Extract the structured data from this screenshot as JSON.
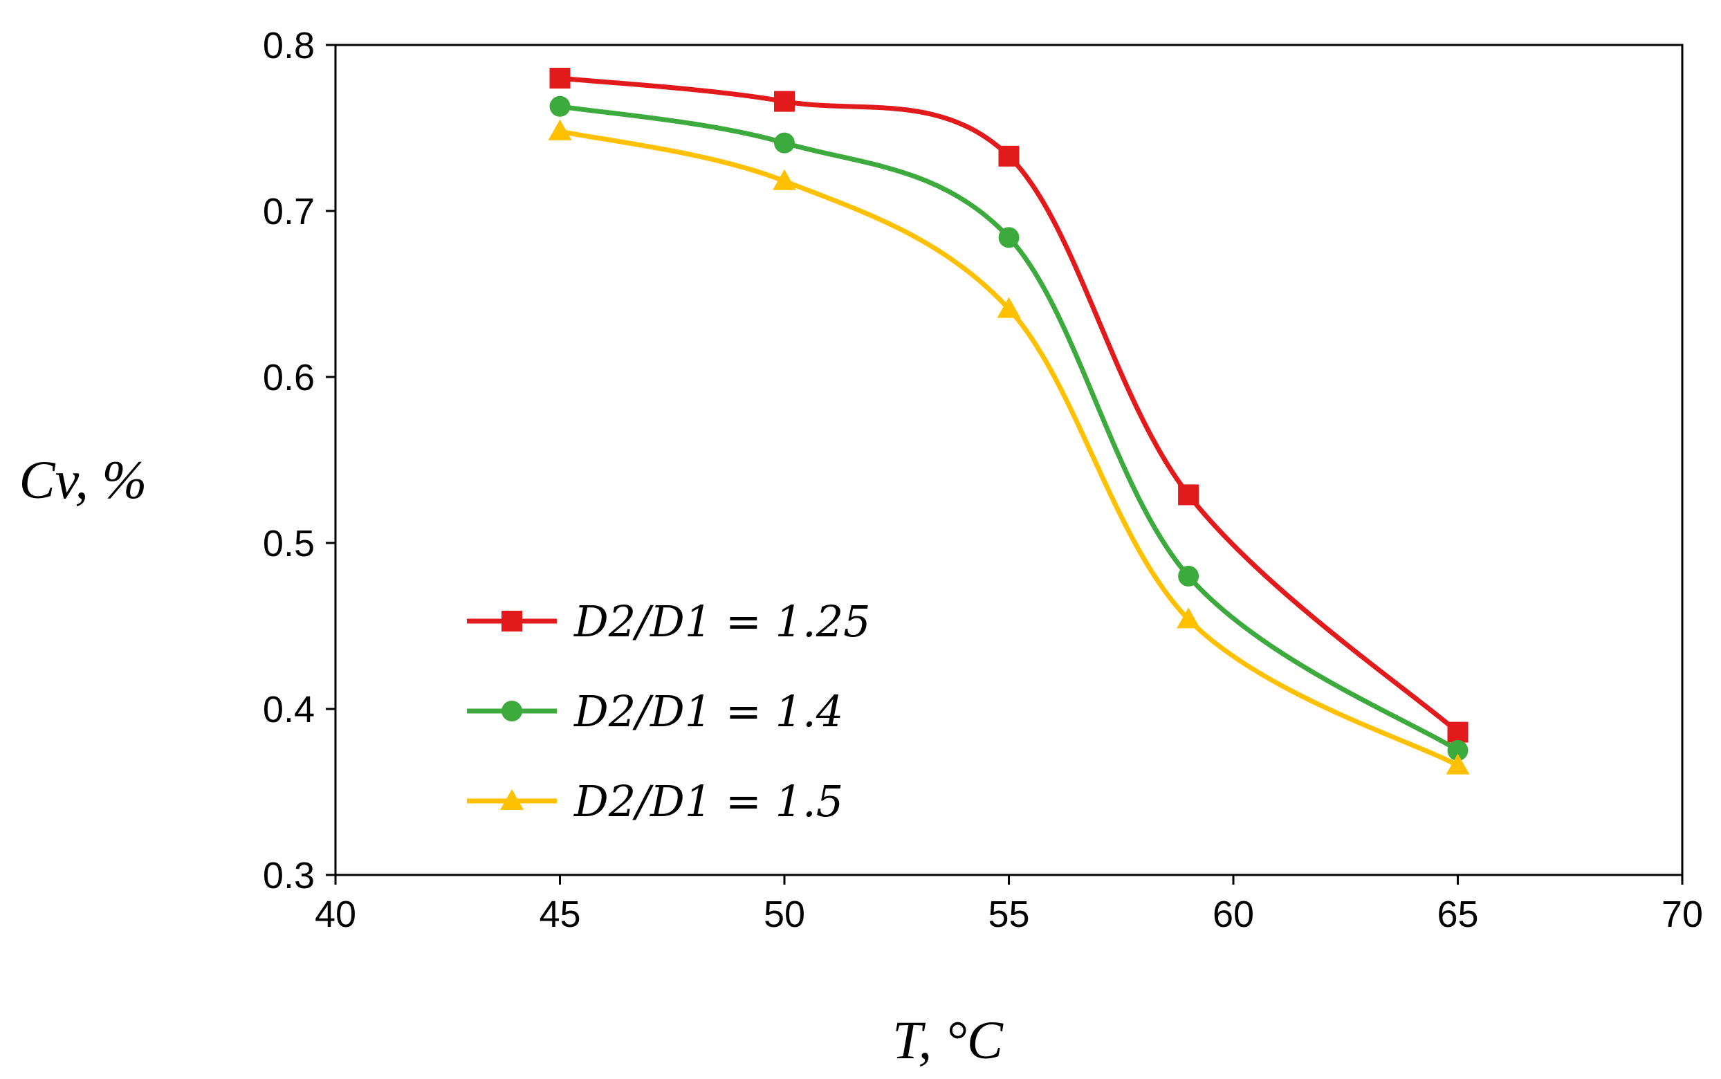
{
  "chart_data": {
    "type": "line",
    "title": "",
    "xlabel": "T, °C",
    "ylabel": "Cv, %",
    "xlim": [
      40,
      70
    ],
    "ylim": [
      0.3,
      0.8
    ],
    "xticks": [
      40,
      45,
      50,
      55,
      60,
      65,
      70
    ],
    "yticks": [
      0.3,
      0.4,
      0.5,
      0.6,
      0.7,
      0.8
    ],
    "xtick_labels": [
      "40",
      "45",
      "50",
      "55",
      "60",
      "65",
      "70"
    ],
    "ytick_labels": [
      "0.3",
      "0.4",
      "0.5",
      "0.6",
      "0.7",
      "0.8"
    ],
    "grid": false,
    "smooth": true,
    "legend_position": "lower-left",
    "x": [
      45,
      50,
      55,
      59,
      65
    ],
    "series": [
      {
        "name": "D2/D1 = 1.25",
        "color": "#e31a1c",
        "marker": "square",
        "values": [
          0.78,
          0.766,
          0.733,
          0.529,
          0.386
        ]
      },
      {
        "name": "D2/D1 = 1.4",
        "color": "#3daa3d",
        "marker": "circle",
        "values": [
          0.763,
          0.741,
          0.684,
          0.48,
          0.375
        ]
      },
      {
        "name": "D2/D1 = 1.5",
        "color": "#ffc000",
        "marker": "triangle",
        "values": [
          0.748,
          0.718,
          0.641,
          0.454,
          0.366
        ]
      }
    ]
  }
}
